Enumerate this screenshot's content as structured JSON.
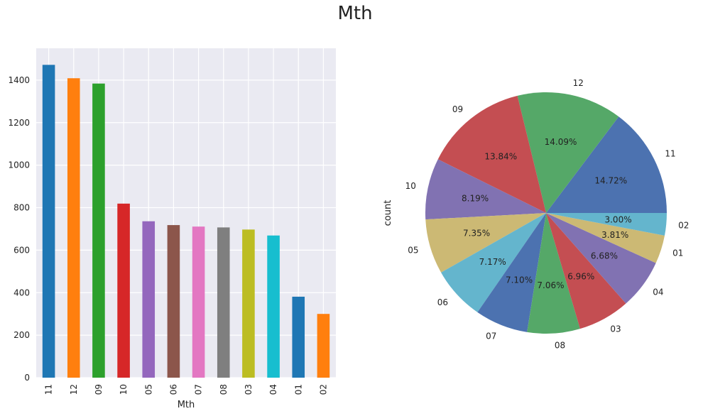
{
  "title": "Mth",
  "colors": {
    "bar_cycle": [
      "#1f77b4",
      "#ff7f0e",
      "#2ca02c",
      "#d62728",
      "#9467bd",
      "#8c564b",
      "#e377c2",
      "#7f7f7f",
      "#bcbd22",
      "#17becf",
      "#1f77b4",
      "#ff7f0e"
    ],
    "pie_cycle": [
      "#4c72b0",
      "#55a868",
      "#c44e52",
      "#8172b2",
      "#ccb974",
      "#64b5cd"
    ],
    "axes_bg": "#eaeaf2",
    "grid": "#ffffff"
  },
  "chart_data": [
    {
      "type": "bar",
      "categories": [
        "11",
        "12",
        "09",
        "10",
        "05",
        "06",
        "07",
        "08",
        "03",
        "04",
        "01",
        "02"
      ],
      "values": [
        1472,
        1409,
        1384,
        819,
        736,
        718,
        711,
        707,
        697,
        669,
        381,
        300
      ],
      "xlabel": "Mth",
      "ylabel": "",
      "ylim": [
        0,
        1550
      ],
      "yticks": [
        0,
        200,
        400,
        600,
        800,
        1000,
        1200,
        1400
      ],
      "grid": true
    },
    {
      "type": "pie",
      "ylabel": "count",
      "labels": [
        "11",
        "12",
        "09",
        "10",
        "05",
        "06",
        "07",
        "08",
        "03",
        "04",
        "01",
        "02"
      ],
      "percent_labels": [
        "14.72%",
        "14.09%",
        "13.84%",
        "8.19%",
        "7.35%",
        "7.17%",
        "7.10%",
        "7.06%",
        "6.96%",
        "6.68%",
        "3.81%",
        "3.00%"
      ],
      "values": [
        14.72,
        14.09,
        13.84,
        8.19,
        7.35,
        7.17,
        7.1,
        7.06,
        6.96,
        6.68,
        3.81,
        3.0
      ],
      "start_angle": 0,
      "direction": "counterclockwise"
    }
  ]
}
